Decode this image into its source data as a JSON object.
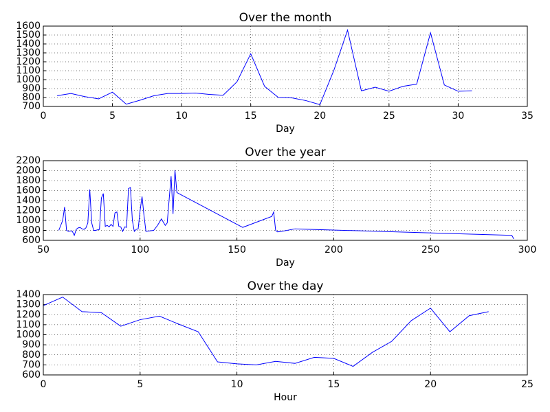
{
  "chart_data": [
    {
      "type": "line",
      "title": "Over the month",
      "x_label": "Day",
      "color": "#0000ff",
      "grid": true,
      "x": [
        1,
        2,
        3,
        4,
        5,
        6,
        7,
        8,
        9,
        10,
        11,
        12,
        13,
        14,
        15,
        16,
        17,
        18,
        19,
        20,
        21,
        22,
        23,
        24,
        25,
        26,
        27,
        28,
        29,
        30,
        31
      ],
      "values": [
        820,
        845,
        810,
        785,
        860,
        725,
        770,
        820,
        845,
        845,
        850,
        835,
        825,
        975,
        1290,
        925,
        800,
        795,
        765,
        720,
        1100,
        1555,
        875,
        915,
        870,
        925,
        950,
        1525,
        940,
        870,
        875
      ],
      "xlim": [
        0,
        35
      ],
      "xticks": [
        0,
        5,
        10,
        15,
        20,
        25,
        30,
        35
      ],
      "ylim": [
        700,
        1600
      ],
      "yticks": [
        700,
        800,
        900,
        1000,
        1100,
        1200,
        1300,
        1400,
        1500,
        1600
      ]
    },
    {
      "type": "line",
      "title": "Over the year",
      "x_label": "Day",
      "color": "#0000ff",
      "grid": true,
      "x": [
        58,
        60,
        61,
        62,
        63,
        64,
        65,
        66,
        67,
        68,
        69,
        70,
        71,
        72,
        73,
        74,
        75,
        76,
        77,
        78,
        79,
        80,
        81,
        82,
        83,
        84,
        85,
        86,
        87,
        88,
        89,
        90,
        91,
        92,
        93,
        94,
        95,
        96,
        97,
        98,
        99,
        100,
        101,
        102,
        103,
        105,
        107,
        109,
        111,
        113,
        114,
        116,
        117,
        118,
        119,
        153,
        168,
        169,
        170,
        171,
        173,
        180,
        292,
        293
      ],
      "values": [
        800,
        1000,
        1270,
        800,
        780,
        790,
        780,
        700,
        820,
        850,
        860,
        830,
        820,
        850,
        950,
        1620,
        950,
        800,
        800,
        810,
        820,
        1450,
        1540,
        880,
        900,
        870,
        920,
        880,
        1150,
        1170,
        880,
        870,
        780,
        870,
        860,
        1640,
        1660,
        1000,
        780,
        820,
        830,
        1200,
        1480,
        1100,
        780,
        790,
        800,
        900,
        1030,
        900,
        950,
        1890,
        1130,
        2010,
        1560,
        860,
        1080,
        1170,
        800,
        770,
        780,
        830,
        700,
        630
      ],
      "xlim": [
        50,
        300
      ],
      "xticks": [
        50,
        100,
        150,
        200,
        250,
        300
      ],
      "ylim": [
        600,
        2200
      ],
      "yticks": [
        600,
        800,
        1000,
        1200,
        1400,
        1600,
        1800,
        2000,
        2200
      ]
    },
    {
      "type": "line",
      "title": "Over the day",
      "x_label": "Hour",
      "color": "#0000ff",
      "grid": true,
      "x": [
        0,
        1,
        2,
        3,
        4,
        5,
        6,
        7,
        8,
        9,
        10,
        11,
        12,
        13,
        14,
        15,
        16,
        17,
        18,
        19,
        20,
        21,
        22,
        23
      ],
      "values": [
        1290,
        1375,
        1230,
        1220,
        1085,
        1150,
        1185,
        1105,
        1030,
        730,
        710,
        700,
        735,
        715,
        775,
        765,
        685,
        825,
        935,
        1140,
        1265,
        1030,
        1190,
        1230
      ],
      "xlim": [
        0,
        25
      ],
      "xticks": [
        0,
        5,
        10,
        15,
        20,
        25
      ],
      "ylim": [
        600,
        1400
      ],
      "yticks": [
        600,
        700,
        800,
        900,
        1000,
        1100,
        1200,
        1300,
        1400
      ]
    }
  ]
}
